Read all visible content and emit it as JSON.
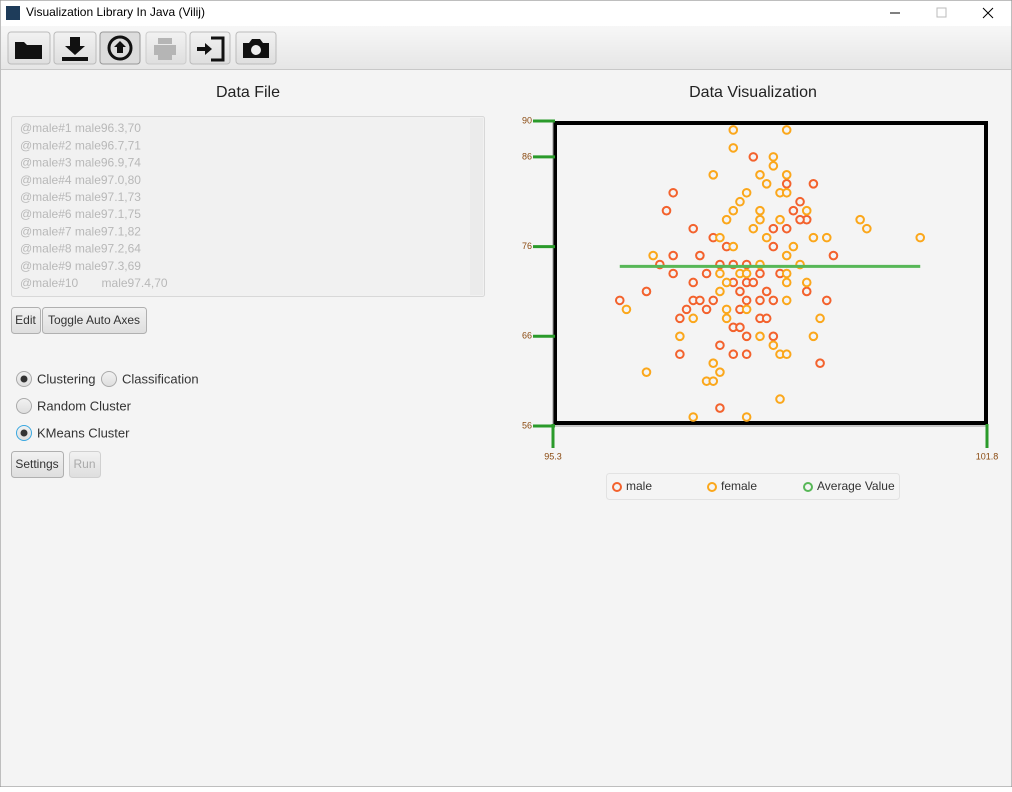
{
  "window": {
    "title": "Visualization Library In Java (Vilij)"
  },
  "data_panel": {
    "title": "Data File",
    "lines": [
      "@male#1 male96.3,70",
      "@male#2 male96.7,71",
      "@male#3 male96.9,74",
      "@male#4 male97.0,80",
      "@male#5 male97.1,73",
      "@male#6 male97.1,75",
      "@male#7 male97.1,82",
      "@male#8 male97.2,64",
      "@male#9 male97.3,69",
      "@male#10       male97.4,70"
    ],
    "buttons": [
      "Edit",
      "Toggle Auto Axes"
    ]
  },
  "algorithm_panel": {
    "types": [
      "Clustering",
      "Classification"
    ],
    "selected_type": 0,
    "algorithms": [
      "Random Cluster",
      "KMeans Cluster"
    ],
    "selected_algorithm": 1,
    "buttons": [
      "Settings",
      "Run"
    ]
  },
  "chart_data": {
    "type": "scatter",
    "title": "Data Visualization",
    "xlim": [
      95.3,
      101.8
    ],
    "xticks": [
      95.3,
      101.8
    ],
    "ylim": [
      56,
      90
    ],
    "yticks": [
      56,
      66,
      76,
      86,
      90
    ],
    "series": [
      {
        "name": "male",
        "color": "#f3622d",
        "x": [
          96.3,
          96.7,
          96.9,
          97.0,
          97.1,
          97.1,
          97.1,
          97.2,
          97.3,
          97.4,
          98.3,
          98.8,
          99.2,
          99.0,
          98.9,
          99.1,
          98.8,
          98.6,
          97.7,
          97.4,
          99.5,
          97.5,
          97.6,
          97.8,
          98.0,
          98.2,
          98.4,
          98.7,
          97.4,
          98.0,
          98.2,
          98.3,
          98.1,
          98.5,
          97.7,
          97.5,
          98.2,
          98.4,
          98.6,
          99.1,
          99.4,
          97.6,
          98.1,
          98.4,
          98.5,
          98.0,
          98.1,
          98.2,
          98.6,
          97.8,
          98.2,
          98.0,
          99.3,
          97.8,
          97.9,
          98.6,
          99.0,
          97.2
        ],
        "values": [
          70,
          71,
          74,
          80,
          73,
          75,
          82,
          64,
          69,
          70,
          86,
          83,
          83,
          81,
          80,
          79,
          78,
          78,
          77,
          78,
          75,
          75,
          73,
          74,
          74,
          74,
          73,
          73,
          72,
          72,
          72,
          72,
          71,
          71,
          70,
          70,
          70,
          70,
          70,
          71,
          70,
          69,
          69,
          68,
          68,
          67,
          67,
          66,
          66,
          65,
          64,
          64,
          63,
          58,
          76,
          76,
          79,
          68
        ]
      },
      {
        "name": "female",
        "color": "#fba71b",
        "x": [
          98.0,
          98.8,
          98.0,
          98.6,
          98.6,
          97.7,
          98.4,
          98.8,
          98.5,
          98.7,
          98.8,
          98.2,
          98.1,
          98.0,
          98.4,
          98.4,
          97.9,
          98.3,
          98.5,
          98.7,
          99.1,
          99.9,
          100.0,
          99.2,
          99.4,
          97.8,
          98.0,
          98.9,
          100.8,
          96.8,
          99.0,
          98.8,
          98.4,
          98.1,
          98.2,
          98.8,
          97.8,
          97.9,
          98.8,
          99.1,
          97.8,
          98.8,
          98.2,
          97.9,
          96.4,
          97.4,
          99.3,
          99.2,
          97.9,
          97.2,
          98.4,
          98.6,
          98.7,
          98.8,
          97.7,
          96.7,
          97.6,
          97.7,
          97.8,
          98.7,
          97.4,
          98.2
        ],
        "values": [
          89,
          89,
          87,
          86,
          85,
          84,
          84,
          84,
          83,
          82,
          82,
          82,
          81,
          80,
          80,
          79,
          79,
          78,
          77,
          79,
          80,
          79,
          78,
          77,
          77,
          77,
          76,
          76,
          77,
          75,
          74,
          75,
          74,
          73,
          73,
          73,
          73,
          72,
          72,
          72,
          71,
          70,
          69,
          69,
          69,
          68,
          68,
          66,
          68,
          66,
          66,
          65,
          64,
          64,
          63,
          62,
          61,
          61,
          62,
          59,
          57,
          57
        ]
      },
      {
        "name": "Average Value",
        "color": "#57b757",
        "line": true,
        "x": [
          96.3,
          100.8
        ],
        "values": [
          73.8,
          73.8
        ]
      }
    ]
  }
}
